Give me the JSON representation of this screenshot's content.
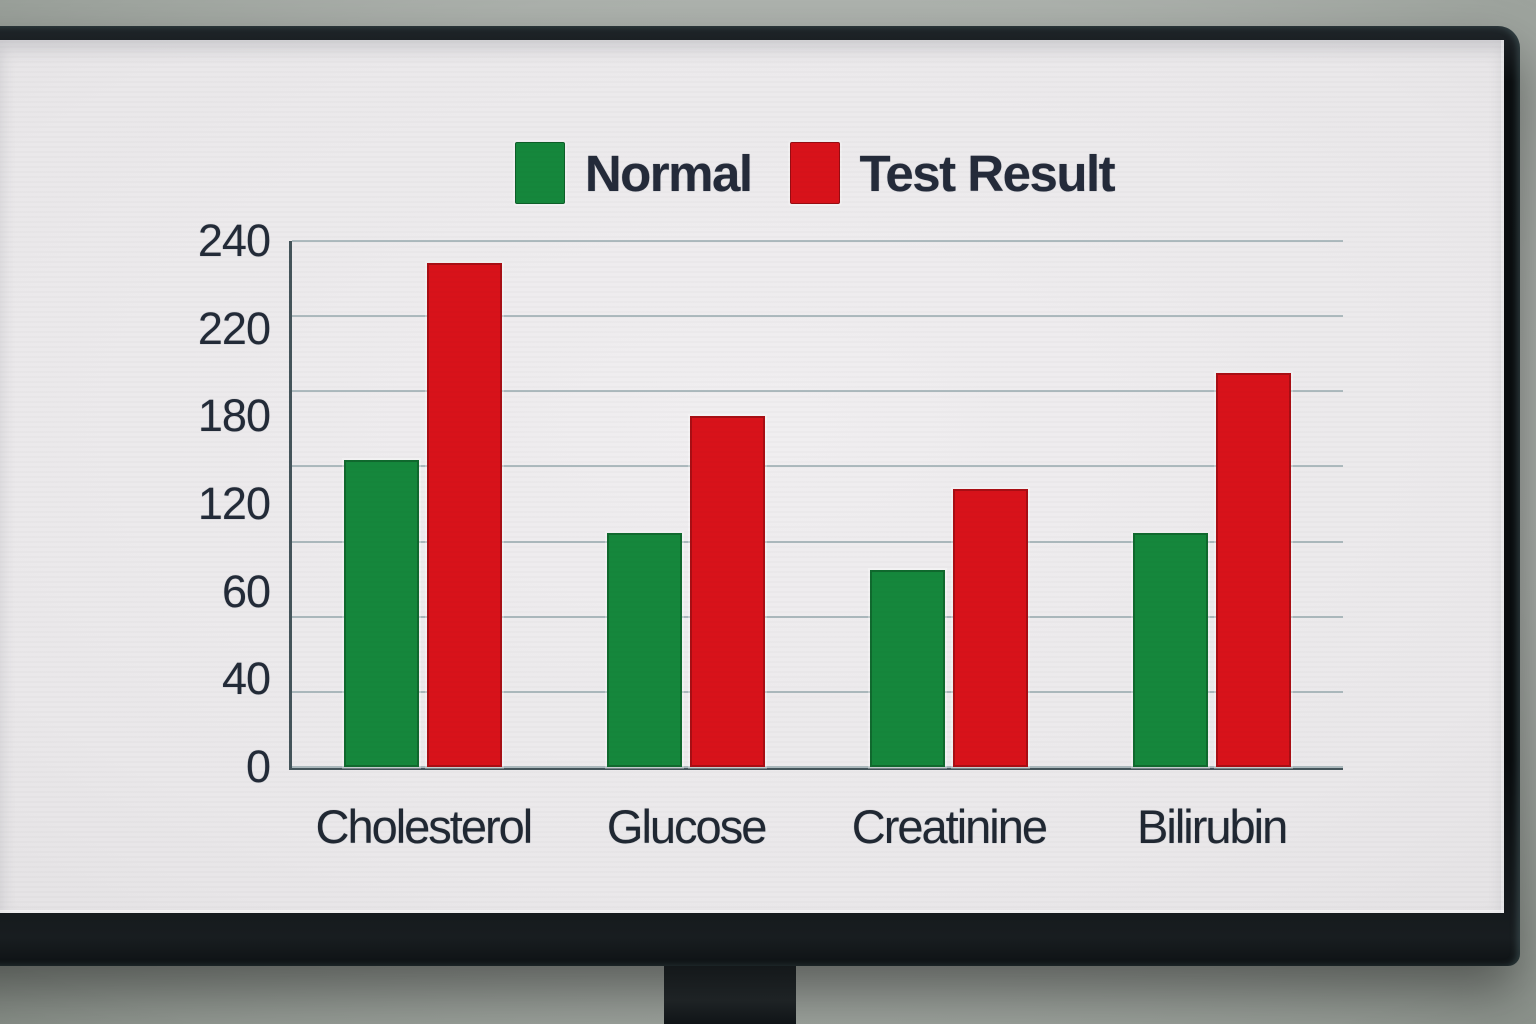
{
  "legend": {
    "items": [
      {
        "label": "Normal",
        "color": "#15873c"
      },
      {
        "label": "Test Result",
        "color": "#d8121a"
      }
    ]
  },
  "chart_data": {
    "type": "bar",
    "title": "",
    "categories": [
      "Cholesterol",
      "Glucose",
      "Creatinine",
      "Bilirubin"
    ],
    "series": [
      {
        "name": "Normal",
        "color": "#15873c",
        "values": [
          150,
          100,
          75,
          100
        ]
      },
      {
        "name": "Test Result",
        "color": "#d8121a",
        "values": [
          235,
          180,
          130,
          200
        ]
      }
    ],
    "y_ticks": [
      240,
      220,
      180,
      120,
      60,
      40,
      0
    ],
    "ylim": [
      0,
      240
    ],
    "gridline_count": 8,
    "grid": true,
    "legend_position": "top",
    "xlabel": "",
    "ylabel": "",
    "note": "y tick labels 240/220/180/120/60/40/0 are evenly spaced on screen (non-uniform value scale)",
    "colors": {
      "normal_series": "#15873c",
      "test_result_series": "#d8121a",
      "axis_line": "#44545a",
      "grid_line": "#adbabe",
      "text": "#232b38",
      "screen_background": "#eae8ea",
      "bezel": "#0b0e10"
    }
  }
}
